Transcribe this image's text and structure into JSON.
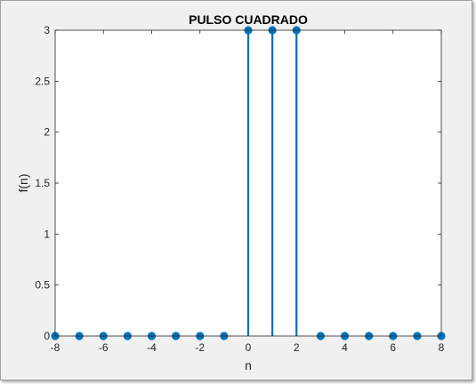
{
  "chart_data": {
    "type": "stem",
    "title": "PULSO CUADRADO",
    "xlabel": "n",
    "ylabel": "f(n)",
    "xlim": [
      -8,
      8
    ],
    "ylim": [
      0,
      3
    ],
    "x": [
      -8,
      -7,
      -6,
      -5,
      -4,
      -3,
      -2,
      -1,
      0,
      1,
      2,
      3,
      4,
      5,
      6,
      7,
      8
    ],
    "y": [
      0,
      0,
      0,
      0,
      0,
      0,
      0,
      0,
      3,
      3,
      3,
      0,
      0,
      0,
      0,
      0,
      0
    ],
    "xticks": [
      "-8",
      "-6",
      "-4",
      "-2",
      "0",
      "2",
      "4",
      "6",
      "8"
    ],
    "yticks": [
      "0",
      "0.5",
      "1",
      "1.5",
      "2",
      "2.5",
      "3"
    ],
    "grid": false,
    "color": "#0072BD"
  }
}
